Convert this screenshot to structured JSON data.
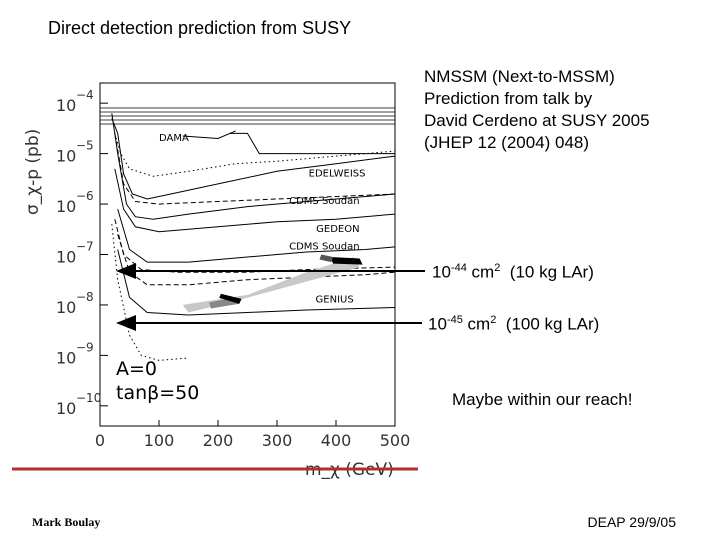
{
  "slide": {
    "title": "Direct detection prediction from SUSY",
    "note_lines": [
      "NMSSM (Next-to-MSSM)",
      "Prediction from talk by",
      "David Cerdeno at SUSY 2005",
      "(JHEP 12 (2004) 048)"
    ],
    "annotation_1": {
      "base": "10",
      "exp": "-44",
      "unit": " cm",
      "unit_exp": "2",
      "tail": "  (10 kg LAr)"
    },
    "annotation_2": {
      "base": "10",
      "exp": "-45",
      "unit": " cm",
      "unit_exp": "2",
      "tail": "  (100 kg LAr)"
    },
    "reach_text": "Maybe within our reach!",
    "footer_left": "Mark Boulay",
    "footer_right": "DEAP 29/9/05",
    "accent_line_color": "#b03030"
  },
  "chart_data": {
    "type": "line",
    "xlabel": "m_χ (GeV)",
    "ylabel": "σ_χ-p (pb)",
    "x_ticks": [
      0,
      100,
      200,
      300,
      400,
      500
    ],
    "x_tick_labels": [
      "0",
      "100",
      "200",
      "300",
      "400",
      "500"
    ],
    "y_ticks": [
      -4,
      -5,
      -6,
      -7,
      -8,
      -9,
      -10
    ],
    "y_tick_base": "10",
    "y_tick_exponents": [
      "−4",
      "−5",
      "−6",
      "−7",
      "−8",
      "−9",
      "−10"
    ],
    "xlim": [
      0,
      500
    ],
    "ylim_log10": [
      -10.4,
      -3.6
    ],
    "curve_labels": [
      {
        "text": "DAMA",
        "x": 100,
        "y": -4.75
      },
      {
        "text": "EDELWEISS",
        "x": 450,
        "y": -5.45
      },
      {
        "text": "CDMS Soudan",
        "x": 440,
        "y": -6.0
      },
      {
        "text": "GEDEON",
        "x": 440,
        "y": -6.55
      },
      {
        "text": "CDMS Soudan",
        "x": 440,
        "y": -6.9
      },
      {
        "text": "GENIUS",
        "x": 430,
        "y": -7.95
      }
    ],
    "panel_text": [
      "A=0",
      "tanβ=50"
    ],
    "series": [
      {
        "style": "solid",
        "points": [
          [
            20,
            -4.3
          ],
          [
            30,
            -4.6
          ],
          [
            40,
            -5.4
          ],
          [
            55,
            -5.8
          ],
          [
            80,
            -5.9
          ],
          [
            120,
            -5.8
          ],
          [
            200,
            -5.6
          ],
          [
            300,
            -5.35
          ],
          [
            400,
            -5.2
          ],
          [
            500,
            -5.05
          ]
        ]
      },
      {
        "style": "dotted",
        "points": [
          [
            25,
            -4.6
          ],
          [
            35,
            -5.0
          ],
          [
            50,
            -5.3
          ],
          [
            90,
            -5.45
          ],
          [
            150,
            -5.35
          ],
          [
            230,
            -5.2
          ],
          [
            300,
            -5.15
          ],
          [
            400,
            -5.05
          ],
          [
            500,
            -4.95
          ]
        ]
      },
      {
        "style": "solid",
        "points": [
          [
            20,
            -4.2
          ],
          [
            30,
            -5.0
          ],
          [
            45,
            -6.0
          ],
          [
            60,
            -6.25
          ],
          [
            90,
            -6.3
          ],
          [
            150,
            -6.2
          ],
          [
            250,
            -6.05
          ],
          [
            350,
            -5.95
          ],
          [
            500,
            -5.8
          ]
        ]
      },
      {
        "style": "dashed",
        "points": [
          [
            25,
            -4.6
          ],
          [
            40,
            -5.6
          ],
          [
            60,
            -5.95
          ],
          [
            100,
            -6.0
          ],
          [
            200,
            -5.95
          ],
          [
            300,
            -5.9
          ],
          [
            400,
            -5.85
          ],
          [
            500,
            -5.8
          ]
        ]
      },
      {
        "style": "solid",
        "points": [
          [
            25,
            -5.3
          ],
          [
            40,
            -6.1
          ],
          [
            60,
            -6.45
          ],
          [
            100,
            -6.55
          ],
          [
            200,
            -6.45
          ],
          [
            300,
            -6.35
          ],
          [
            400,
            -6.3
          ],
          [
            500,
            -6.2
          ]
        ]
      },
      {
        "style": "solid",
        "points": [
          [
            30,
            -6.1
          ],
          [
            50,
            -6.9
          ],
          [
            80,
            -7.15
          ],
          [
            150,
            -7.15
          ],
          [
            250,
            -7.05
          ],
          [
            350,
            -6.95
          ],
          [
            450,
            -6.9
          ],
          [
            500,
            -6.85
          ]
        ]
      },
      {
        "style": "dashed",
        "points": [
          [
            30,
            -6.6
          ],
          [
            50,
            -7.35
          ],
          [
            80,
            -7.6
          ],
          [
            150,
            -7.6
          ],
          [
            250,
            -7.5
          ],
          [
            350,
            -7.45
          ],
          [
            450,
            -7.4
          ],
          [
            500,
            -7.35
          ]
        ]
      },
      {
        "style": "dashed",
        "points": [
          [
            25,
            -6.3
          ],
          [
            40,
            -7.0
          ],
          [
            70,
            -7.3
          ],
          [
            130,
            -7.35
          ],
          [
            250,
            -7.35
          ],
          [
            350,
            -7.3
          ],
          [
            500,
            -7.25
          ]
        ]
      },
      {
        "style": "solid",
        "points": [
          [
            30,
            -6.9
          ],
          [
            50,
            -7.85
          ],
          [
            80,
            -8.15
          ],
          [
            150,
            -8.2
          ],
          [
            250,
            -8.15
          ],
          [
            350,
            -8.1
          ],
          [
            500,
            -8.05
          ]
        ]
      },
      {
        "style": "dotted",
        "points": [
          [
            20,
            -6.4
          ],
          [
            30,
            -7.5
          ],
          [
            50,
            -8.6
          ],
          [
            70,
            -9.0
          ],
          [
            100,
            -9.1
          ],
          [
            150,
            -9.05
          ]
        ]
      }
    ],
    "bands": [
      {
        "color": "#c8c8c8",
        "points": [
          [
            140,
            -8.0
          ],
          [
            250,
            -7.8
          ],
          [
            350,
            -7.35
          ],
          [
            430,
            -7.05
          ],
          [
            440,
            -7.25
          ],
          [
            330,
            -7.6
          ],
          [
            220,
            -7.95
          ],
          [
            150,
            -8.15
          ]
        ]
      },
      {
        "color": "#888888",
        "points": [
          [
            185,
            -7.95
          ],
          [
            230,
            -7.85
          ],
          [
            235,
            -7.98
          ],
          [
            188,
            -8.07
          ]
        ]
      },
      {
        "color": "#000000",
        "points": [
          [
            205,
            -7.78
          ],
          [
            240,
            -7.88
          ],
          [
            236,
            -7.98
          ],
          [
            202,
            -7.86
          ]
        ]
      },
      {
        "color": "#000000",
        "points": [
          [
            390,
            -7.05
          ],
          [
            440,
            -7.08
          ],
          [
            445,
            -7.2
          ],
          [
            395,
            -7.18
          ]
        ]
      },
      {
        "color": "#555555",
        "points": [
          [
            375,
            -7.0
          ],
          [
            395,
            -7.05
          ],
          [
            392,
            -7.15
          ],
          [
            372,
            -7.1
          ]
        ]
      }
    ],
    "limit_steps": [
      {
        "style": "solid",
        "points": [
          [
            220,
            -4.6
          ],
          [
            250,
            -4.6
          ],
          [
            270,
            -5.0
          ],
          [
            500,
            -5.0
          ]
        ]
      },
      {
        "style": "solid",
        "points": [
          [
            140,
            -4.65
          ],
          [
            200,
            -4.7
          ],
          [
            230,
            -4.55
          ]
        ]
      }
    ]
  }
}
